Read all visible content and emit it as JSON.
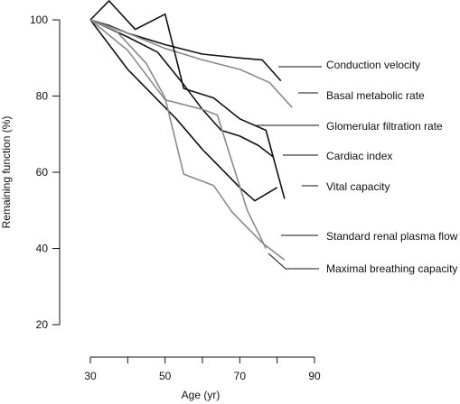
{
  "chart_data": {
    "type": "line",
    "title": "",
    "xlabel": "Age (yr)",
    "ylabel": "Remaining function (%)",
    "xlim": [
      30,
      90
    ],
    "ylim": [
      20,
      100
    ],
    "xticks": [
      30,
      50,
      70,
      90
    ],
    "yticks": [
      20,
      40,
      60,
      80,
      100
    ],
    "grid": false,
    "legend": "direct labels at right",
    "series": [
      {
        "name": "Conduction velocity",
        "color": "#111111",
        "x": [
          30,
          35,
          40,
          50,
          60,
          70,
          76,
          81
        ],
        "y": [
          100,
          98.5,
          96.5,
          93.5,
          91,
          90,
          89.5,
          84
        ]
      },
      {
        "name": "Basal metabolic rate",
        "color": "#8a8a8a",
        "x": [
          30,
          40,
          50,
          60,
          70,
          78,
          84
        ],
        "y": [
          100,
          96.5,
          92.5,
          89.5,
          87,
          83.5,
          77
        ]
      },
      {
        "name": "Glomerular filtration rate",
        "color": "#111111",
        "x": [
          30,
          35,
          42,
          50,
          55,
          63,
          70,
          77,
          82
        ],
        "y": [
          100,
          105,
          97.5,
          101.5,
          82,
          79.5,
          74,
          71,
          53
        ]
      },
      {
        "name": "Cardiac index",
        "color": "#111111",
        "x": [
          30,
          40,
          48,
          55,
          60,
          65,
          70,
          75,
          79
        ],
        "y": [
          100,
          95.5,
          91.5,
          83,
          76.5,
          71,
          69.5,
          67,
          64
        ]
      },
      {
        "name": "Vital capacity",
        "color": "#111111",
        "x": [
          30,
          40,
          50,
          53,
          60,
          67,
          70,
          74,
          80
        ],
        "y": [
          100,
          87,
          77,
          74,
          66,
          59,
          56,
          52.5,
          56
        ]
      },
      {
        "name": "Standard renal plasma flow",
        "color": "#8a8a8a",
        "x": [
          30,
          40,
          50,
          60,
          64,
          72,
          77
        ],
        "y": [
          100,
          92,
          79,
          76.5,
          75,
          50,
          40
        ]
      },
      {
        "name": "Maximal breathing capacity",
        "color": "#8a8a8a",
        "x": [
          30,
          37,
          45,
          50,
          55,
          63,
          68,
          76,
          82
        ],
        "y": [
          100,
          97,
          88.5,
          79.5,
          59.5,
          56.5,
          49.5,
          41.5,
          37
        ]
      }
    ]
  }
}
